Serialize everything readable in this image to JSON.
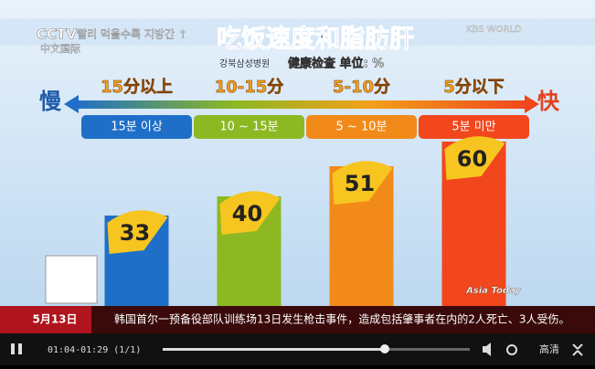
{
  "chart_data": {
    "type": "bar",
    "title": "吃饭速度和脂肪肝",
    "subtitle": "健康检查 单位: %",
    "source": "강북삼성병원",
    "slow_label": "慢",
    "fast_label": "快",
    "header_categories": [
      "15分以上",
      "10-15分",
      "5-10分",
      "5分以下"
    ],
    "categories": [
      "15분 이상",
      "10 ~ 15분",
      "5 ~ 10분",
      "5분 미만"
    ],
    "values": [
      33,
      40,
      51,
      60
    ],
    "colors": [
      "#1f6fc8",
      "#8cb822",
      "#f28a1a",
      "#f2461c"
    ]
  },
  "overlay": {
    "korean_caption": "빨리 먹을수록 지방간 ↑",
    "channel_logo": "CCTV",
    "channel_sub": "中文国际",
    "partner_logo": "KBS WORLD",
    "corner_logo": "Asia Today"
  },
  "ticker": {
    "date": "5月13日",
    "text": "韩国首尔一预备役部队训练场13日发生枪击事件，造成包括肇事者在内的2人死亡、3人受伤。"
  },
  "player": {
    "time": "01:04-01:29 (1/1)",
    "quality": "高清"
  }
}
